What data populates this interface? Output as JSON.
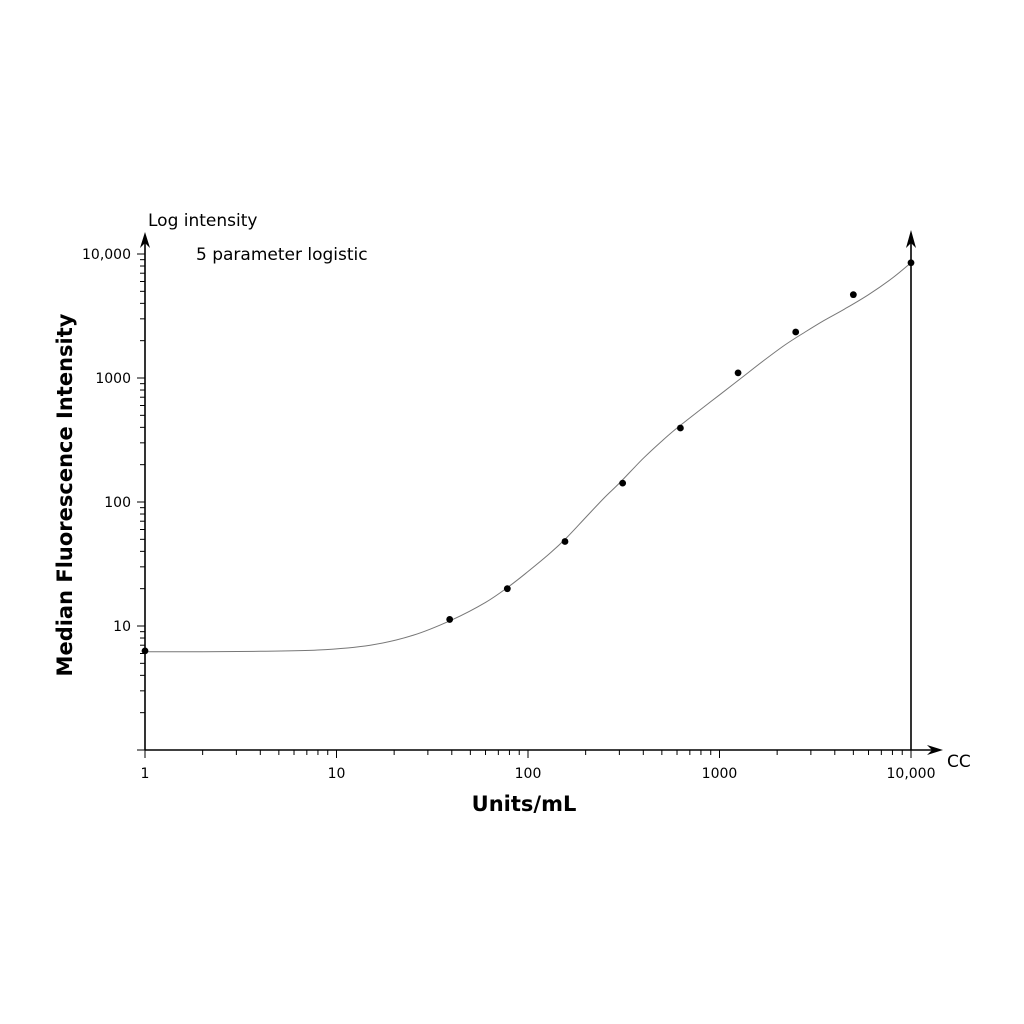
{
  "chart_data": {
    "type": "scatter",
    "title": "",
    "annotation": "5 parameter logistic",
    "y_axis_top_label": "Log intensity",
    "x_axis_end_label": "CC",
    "xlabel": "Units/mL",
    "ylabel": "Median Fluorescence Intensity",
    "x_scale": "log",
    "y_scale": "log",
    "xlim": [
      1,
      10000
    ],
    "ylim": [
      1,
      10000
    ],
    "x_tick_labels": [
      {
        "value": 1,
        "label": "1"
      },
      {
        "value": 10,
        "label": "10"
      },
      {
        "value": 100,
        "label": "100"
      },
      {
        "value": 1000,
        "label": "1000"
      },
      {
        "value": 10000,
        "label": "10,000"
      }
    ],
    "y_tick_labels": [
      {
        "value": 10,
        "label": "10"
      },
      {
        "value": 100,
        "label": "100"
      },
      {
        "value": 1000,
        "label": "1000"
      },
      {
        "value": 10000,
        "label": "10,000"
      }
    ],
    "grid": false,
    "series": [
      {
        "x": [
          1,
          39,
          78,
          156,
          312,
          625,
          1250,
          2500,
          5000,
          10000
        ],
        "y": [
          6.3,
          11.3,
          20,
          48,
          142,
          395,
          1100,
          2350,
          4700,
          8500
        ]
      }
    ],
    "fit_curve": {
      "model": "5 parameter logistic",
      "x": [
        1,
        2,
        4,
        8,
        15,
        25,
        40,
        60,
        80,
        100,
        130,
        160,
        200,
        250,
        300,
        400,
        500,
        600,
        800,
        1000,
        1300,
        1700,
        2200,
        2800,
        3500,
        4500,
        6000,
        8000,
        10000
      ],
      "y": [
        6.2,
        6.2,
        6.25,
        6.4,
        7.0,
        8.4,
        11.2,
        15.5,
        21,
        27.5,
        38.5,
        52,
        75,
        108,
        142,
        225,
        310,
        395,
        560,
        730,
        1000,
        1380,
        1850,
        2350,
        2900,
        3600,
        4700,
        6400,
        8500
      ]
    }
  }
}
